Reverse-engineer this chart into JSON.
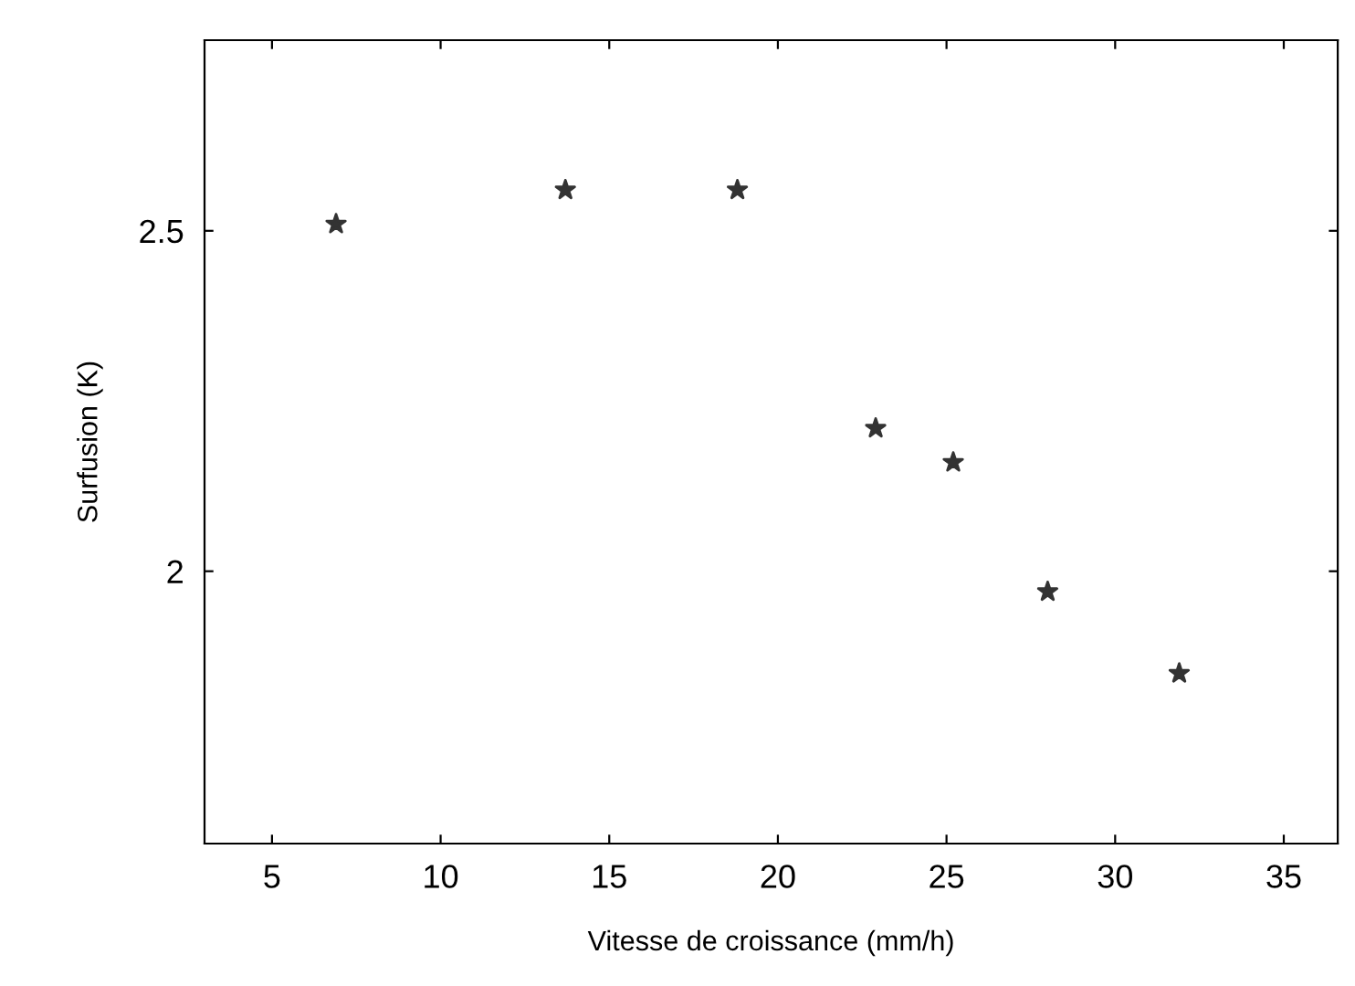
{
  "chart_data": {
    "type": "scatter",
    "xlabel": "Vitesse de croissance (mm/h)",
    "ylabel": "Surfusion (K)",
    "x": [
      6.9,
      13.7,
      18.8,
      22.9,
      25.2,
      28.0,
      31.9
    ],
    "values": [
      2.51,
      2.56,
      2.56,
      2.21,
      2.16,
      1.97,
      1.85
    ],
    "color": "#333333",
    "marker": "star",
    "xlim": [
      3,
      36.6
    ],
    "ylim": [
      1.6,
      2.78
    ],
    "xticks": [
      5,
      10,
      15,
      20,
      25,
      30,
      35
    ],
    "yticks": [
      2,
      2.5
    ],
    "grid": false,
    "legend": false
  }
}
